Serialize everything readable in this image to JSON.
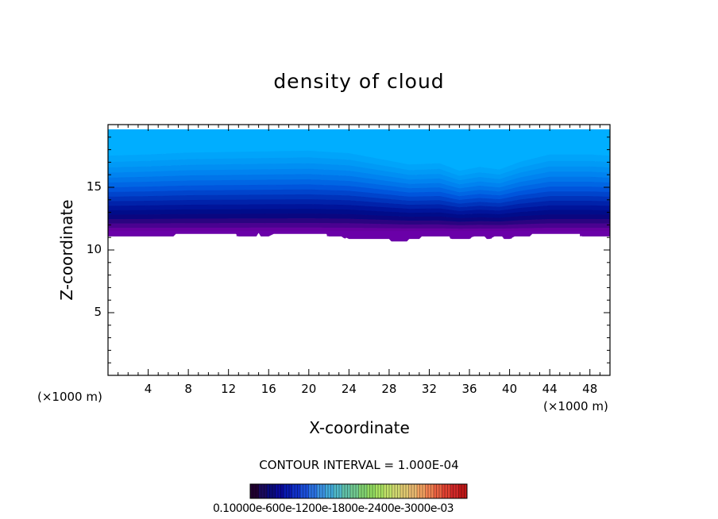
{
  "chart_data": {
    "type": "heatmap",
    "title": "density of cloud",
    "xlabel": "X-coordinate",
    "ylabel": "Z-coordinate",
    "x_unit": "(×1000 m)",
    "xlim": [
      0,
      50
    ],
    "ylim": [
      0,
      20
    ],
    "x_ticks": [
      4,
      8,
      12,
      16,
      20,
      24,
      28,
      32,
      36,
      40,
      44,
      48
    ],
    "y_ticks": [
      5,
      10,
      15
    ],
    "contour_interval_label": "CONTOUR INTERVAL = 1.000E-04",
    "colorbar_labels_text": "0.10000e-600e-1200e-1800e-2400e-3000e-03",
    "cloud_layer": {
      "top_z": 19.6,
      "bottom_z_profile": [
        [
          0,
          11.1
        ],
        [
          6.5,
          11.1
        ],
        [
          6.5,
          11.3
        ],
        [
          12.8,
          11.3
        ],
        [
          12.8,
          11.1
        ],
        [
          14.8,
          11.1
        ],
        [
          15,
          11.4
        ],
        [
          15.2,
          11.1
        ],
        [
          15.6,
          11.1
        ],
        [
          16,
          11.1
        ],
        [
          16.5,
          11.3
        ],
        [
          21.8,
          11.3
        ],
        [
          21.8,
          11.1
        ],
        [
          23.3,
          11.1
        ],
        [
          23.6,
          10.9
        ],
        [
          23.9,
          11.1
        ],
        [
          24,
          10.9
        ],
        [
          28,
          10.9
        ],
        [
          28.2,
          10.7
        ],
        [
          29.8,
          10.7
        ],
        [
          30,
          10.9
        ],
        [
          31,
          10.9
        ],
        [
          31,
          11.1
        ],
        [
          34,
          11.1
        ],
        [
          34.1,
          10.9
        ],
        [
          36.1,
          10.9
        ],
        [
          36.3,
          11.1
        ],
        [
          37.6,
          11.1
        ],
        [
          37.7,
          10.9
        ],
        [
          38.2,
          10.9
        ],
        [
          38.3,
          11.1
        ],
        [
          39.3,
          11.1
        ],
        [
          39.4,
          10.9
        ],
        [
          40.2,
          10.9
        ],
        [
          40.3,
          11.1
        ],
        [
          42,
          11.1
        ],
        [
          42,
          11.3
        ],
        [
          47,
          11.3
        ],
        [
          47,
          11.1
        ],
        [
          50,
          11.1
        ]
      ],
      "color_bands_top_to_bottom": [
        "#00aeff",
        "#00a4fa",
        "#009af6",
        "#008ff3",
        "#0083f0",
        "#0075ea",
        "#0066e4",
        "#0055dc",
        "#0044cc",
        "#0033bb",
        "#0022aa",
        "#00149a",
        "#000c8a",
        "#0a0680",
        "#2a0480",
        "#4a0290",
        "#6600a0"
      ],
      "band_upper_z_profile": [
        [
          0,
          17.5
        ],
        [
          4,
          17.6
        ],
        [
          8,
          17.75
        ],
        [
          12,
          17.8
        ],
        [
          16,
          17.85
        ],
        [
          20,
          17.9
        ],
        [
          24,
          17.7
        ],
        [
          28,
          17.1
        ],
        [
          30,
          16.8
        ],
        [
          33,
          16.9
        ],
        [
          35,
          16.3
        ],
        [
          37,
          16.6
        ],
        [
          39,
          16.4
        ],
        [
          41,
          17.0
        ],
        [
          44,
          17.6
        ],
        [
          48,
          17.6
        ],
        [
          50,
          17.5
        ]
      ]
    },
    "colorbar": {
      "colors": [
        "#200030",
        "#1a0a5c",
        "#0a0a7a",
        "#0a0a99",
        "#0a1bb0",
        "#1030c8",
        "#1a4ed8",
        "#2a70e0",
        "#3a90e0",
        "#40a8d8",
        "#50b8c8",
        "#60c0a8",
        "#70c890",
        "#80d070",
        "#90d860",
        "#a8e060",
        "#c0e068",
        "#d0d870",
        "#e0c870",
        "#e8b870",
        "#f0a060",
        "#f08050",
        "#e86040",
        "#e04030",
        "#d02828",
        "#c01818"
      ]
    }
  }
}
